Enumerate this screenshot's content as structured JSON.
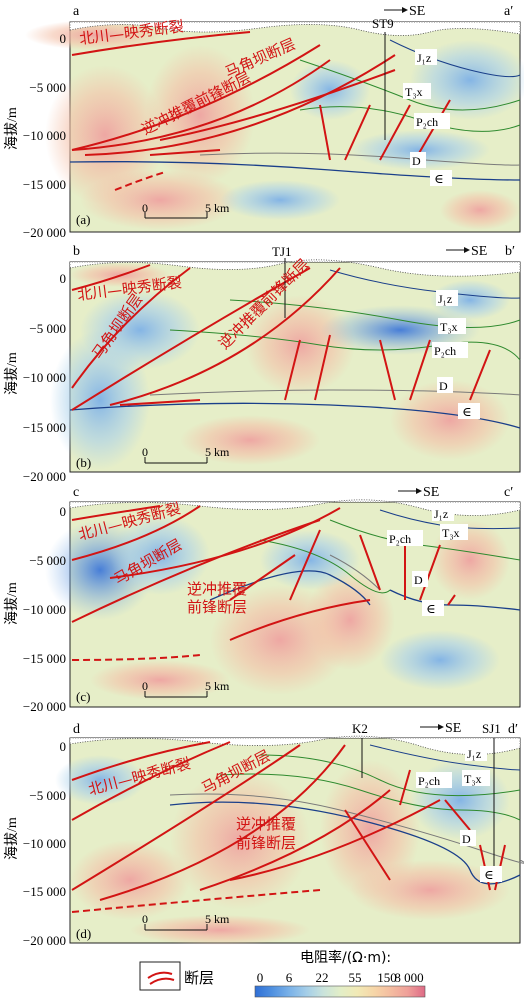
{
  "y_axis": {
    "label": "海拔/m",
    "ticks": [
      "0",
      "−5 000",
      "−10 000",
      "−15 000",
      "−20 000"
    ]
  },
  "scale_bar": {
    "zero": "0",
    "length": "5 km"
  },
  "direction": "SE",
  "panels": [
    {
      "tag": "(a)",
      "left_letter": "a",
      "right_letter": "a′",
      "well": "ST9",
      "labels": {
        "fault1": "北川—映秀断裂",
        "fault2": "马角坝断层",
        "fault3": "逆冲推覆前锋断层",
        "strata": [
          "J₁z",
          "T₃x",
          "P₂ch",
          "D",
          "∈"
        ]
      }
    },
    {
      "tag": "(b)",
      "left_letter": "b",
      "right_letter": "b′",
      "well": "TJ1",
      "labels": {
        "fault1": "北川—映秀断裂",
        "fault2": "马角坝断层",
        "fault3": "逆冲推覆前锋断层",
        "strata": [
          "J₁z",
          "T₃x",
          "P₂ch",
          "D",
          "∈"
        ]
      }
    },
    {
      "tag": "(c)",
      "left_letter": "c",
      "right_letter": "c′",
      "labels": {
        "fault1": "北川—映秀断裂",
        "fault2": "马角坝断层",
        "fault3a": "逆冲推覆",
        "fault3b": "前锋断层",
        "strata": [
          "J₁z",
          "T₃x",
          "P₂ch",
          "D",
          "∈"
        ]
      }
    },
    {
      "tag": "(d)",
      "left_letter": "d",
      "right_letter": "d′",
      "well": "K2",
      "well2": "SJ1",
      "labels": {
        "fault1": "北川—映秀断裂",
        "fault2": "马角坝断层",
        "fault3a": "逆冲推覆",
        "fault3b": "前锋断层",
        "strata": [
          "J₁z",
          "T₃x",
          "P₂ch",
          "D",
          "∈"
        ]
      }
    }
  ],
  "legend": {
    "fault_label": "断层",
    "colorbar_title": "电阻率/(Ω·m):",
    "colorbar_ticks": [
      "0",
      "6",
      "22",
      "55",
      "150",
      "8 000"
    ],
    "colors": [
      "#2f6fd6",
      "#4f90e0",
      "#79b1e8",
      "#a3cde8",
      "#c9e3dc",
      "#e2eec8",
      "#f1eab6",
      "#f6d6a8",
      "#f4bca0",
      "#ef9f99",
      "#e8828e",
      "#de6a86"
    ]
  }
}
